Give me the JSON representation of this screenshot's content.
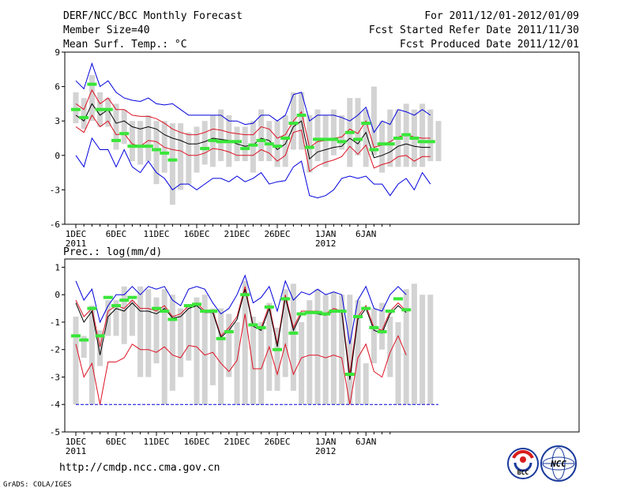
{
  "header": {
    "title": "DERF/NCC/BCC Monthly Forecast",
    "member_size": "Member Size=40",
    "for_range": "For 2011/12/01-2012/01/09",
    "started_date": "Fcst Started Refer Date 2011/11/30",
    "produced_date": "Fcst Produced Date 2011/12/01"
  },
  "footer": {
    "url": "http://cmdp.ncc.cma.gov.cn",
    "grads_credit": "GrADS: COLA/IGES",
    "logo_bcc_text": "BCC",
    "logo_ncc_text": "NCC"
  },
  "colors": {
    "box": "#d3d3d3",
    "median": "#39e639",
    "mean": "#000000",
    "sd": "#dd1122",
    "range": "#0000dd",
    "axis": "#000000"
  },
  "chart_data": [
    {
      "type": "line",
      "title": "Mean Surf. Temp.: °C",
      "ylim": [
        -6,
        9
      ],
      "yticks": [
        "9",
        "6",
        "3",
        "0",
        "-3",
        "-6"
      ],
      "xticks": [
        {
          "day": 1,
          "label": "1DEC",
          "sub": "2011"
        },
        {
          "day": 6,
          "label": "6DEC",
          "sub": ""
        },
        {
          "day": 11,
          "label": "11DEC",
          "sub": ""
        },
        {
          "day": 16,
          "label": "16DEC",
          "sub": ""
        },
        {
          "day": 21,
          "label": "21DEC",
          "sub": ""
        },
        {
          "day": 26,
          "label": "26DEC",
          "sub": ""
        },
        {
          "day": 32,
          "label": "1JAN",
          "sub": "2012"
        },
        {
          "day": 37,
          "label": "6JAN",
          "sub": ""
        }
      ],
      "boxes": [
        [
          2.8,
          5.5
        ],
        [
          2.3,
          5.0
        ],
        [
          3.0,
          7.0
        ],
        [
          2.5,
          5.5
        ],
        [
          2.5,
          5.0
        ],
        [
          0.5,
          4.5
        ],
        [
          1.0,
          4.0
        ],
        [
          -0.5,
          3.0
        ],
        [
          -0.8,
          3.0
        ],
        [
          -0.5,
          3.5
        ],
        [
          -2.5,
          3.0
        ],
        [
          -1.5,
          3.0
        ],
        [
          -4.3,
          2.8
        ],
        [
          -3.0,
          2.8
        ],
        [
          -2.5,
          2.0
        ],
        [
          -1.5,
          2.5
        ],
        [
          -0.8,
          3.0
        ],
        [
          -1.0,
          3.5
        ],
        [
          -0.5,
          4.0
        ],
        [
          -1.0,
          3.5
        ],
        [
          -0.5,
          2.5
        ],
        [
          -0.5,
          2.5
        ],
        [
          -1.5,
          3.0
        ],
        [
          -0.5,
          4.0
        ],
        [
          -0.5,
          3.0
        ],
        [
          -1.0,
          3.0
        ],
        [
          -1.0,
          3.5
        ],
        [
          0.5,
          5.5
        ],
        [
          0.5,
          5.5
        ],
        [
          -1.5,
          3.5
        ],
        [
          -0.5,
          4.0
        ],
        [
          -1.0,
          3.5
        ],
        [
          0.0,
          4.0
        ],
        [
          0.5,
          3.5
        ],
        [
          -1.0,
          5.0
        ],
        [
          0.0,
          5.0
        ],
        [
          -1.0,
          4.0
        ],
        [
          0.0,
          6.0
        ],
        [
          -1.5,
          3.0
        ],
        [
          -1.0,
          4.0
        ],
        [
          -1.0,
          4.0
        ],
        [
          -1.0,
          4.5
        ],
        [
          -1.0,
          4.0
        ],
        [
          -1.0,
          4.5
        ],
        [
          -0.5,
          4.0
        ],
        [
          -0.5,
          3.0
        ]
      ],
      "median": [
        4.0,
        3.3,
        6.2,
        4.0,
        4.0,
        1.3,
        1.9,
        0.8,
        0.8,
        0.8,
        0.5,
        0.2,
        -0.4,
        null,
        null,
        null,
        0.6,
        1.3,
        1.2,
        1.2,
        1.2,
        0.6,
        0.9,
        1.3,
        1.0,
        0.8,
        1.5,
        2.8,
        3.5,
        0.7,
        1.4,
        1.4,
        1.4,
        1.2,
        2.0,
        1.4,
        2.8,
        0.5,
        1.0,
        1.0,
        1.5,
        1.8,
        1.5,
        1.2,
        1.2,
        null
      ],
      "mean": [
        3.5,
        3.0,
        4.5,
        3.5,
        4.0,
        2.8,
        3.0,
        2.5,
        2.3,
        2.5,
        2.3,
        1.8,
        1.5,
        1.3,
        1.0,
        1.0,
        1.2,
        1.5,
        1.4,
        1.3,
        1.0,
        0.8,
        0.9,
        1.5,
        1.3,
        0.5,
        1.0,
        2.5,
        3.0,
        -0.3,
        0.3,
        0.5,
        0.7,
        0.8,
        1.5,
        1.0,
        2.0,
        -0.2,
        0.0,
        0.3,
        0.8,
        1.0,
        0.8,
        0.7,
        0.7,
        null
      ],
      "sd_upper": [
        4.5,
        4.0,
        5.7,
        4.5,
        5.0,
        4.0,
        4.0,
        3.5,
        3.4,
        3.4,
        3.2,
        2.8,
        2.3,
        2.0,
        1.8,
        1.8,
        2.0,
        2.3,
        2.2,
        2.0,
        1.9,
        1.8,
        1.8,
        2.5,
        2.3,
        1.5,
        1.8,
        3.0,
        3.8,
        0.7,
        1.2,
        1.3,
        1.5,
        1.6,
        2.3,
        1.9,
        3.0,
        0.7,
        0.9,
        1.2,
        1.6,
        1.8,
        1.6,
        1.5,
        1.5,
        null
      ],
      "sd_lower": [
        2.5,
        2.0,
        3.5,
        2.5,
        3.0,
        1.8,
        1.9,
        1.0,
        0.8,
        1.3,
        1.2,
        0.7,
        0.5,
        0.4,
        0.0,
        0.0,
        0.2,
        0.6,
        0.5,
        0.3,
        0.0,
        0.0,
        0.0,
        0.5,
        0.2,
        -0.5,
        0.0,
        2.0,
        2.2,
        -1.4,
        -0.9,
        -0.6,
        -0.4,
        -0.1,
        0.8,
        0.1,
        0.9,
        -1.1,
        -0.8,
        -0.6,
        -0.1,
        0.0,
        -0.5,
        -0.1,
        -0.1,
        null
      ],
      "range_max": [
        6.5,
        5.8,
        8.0,
        6.0,
        6.5,
        5.5,
        5.0,
        4.8,
        4.7,
        5.0,
        4.5,
        4.4,
        4.5,
        4.0,
        3.5,
        3.5,
        3.5,
        3.5,
        3.5,
        3.0,
        3.0,
        2.7,
        2.8,
        3.5,
        3.5,
        3.0,
        3.5,
        5.3,
        5.5,
        3.0,
        3.5,
        3.5,
        3.5,
        3.3,
        3.0,
        3.5,
        4.2,
        2.0,
        3.0,
        2.7,
        4.0,
        3.8,
        3.5,
        4.0,
        3.5,
        null
      ],
      "range_min": [
        0.0,
        -1.0,
        1.5,
        0.5,
        0.5,
        -1.0,
        0.5,
        -1.0,
        -1.5,
        -0.5,
        -1.5,
        -2.0,
        -3.0,
        -2.5,
        -2.5,
        -3.0,
        -2.5,
        -2.0,
        -2.0,
        -2.3,
        -1.8,
        -2.3,
        -2.0,
        -1.5,
        -2.5,
        -2.3,
        -2.2,
        -1.0,
        -0.5,
        -3.5,
        -3.7,
        -3.5,
        -3.0,
        -2.0,
        -1.8,
        -2.0,
        -1.8,
        -2.5,
        -2.5,
        -3.5,
        -2.5,
        -2.0,
        -3.0,
        -1.5,
        -2.5,
        null
      ]
    },
    {
      "type": "line",
      "title": "Prec.: log(mm/d)",
      "ylim": [
        -5,
        1.3
      ],
      "yticks": [
        "1",
        "0",
        "-1",
        "-2",
        "-3",
        "-4",
        "-5"
      ],
      "xticks": [
        {
          "day": 1,
          "label": "1DEC",
          "sub": "2011"
        },
        {
          "day": 6,
          "label": "6DEC",
          "sub": ""
        },
        {
          "day": 11,
          "label": "11DEC",
          "sub": ""
        },
        {
          "day": 16,
          "label": "16DEC",
          "sub": ""
        },
        {
          "day": 21,
          "label": "21DEC",
          "sub": ""
        },
        {
          "day": 26,
          "label": "26DEC",
          "sub": ""
        },
        {
          "day": 32,
          "label": "1JAN",
          "sub": "2012"
        },
        {
          "day": 37,
          "label": "6JAN",
          "sub": ""
        }
      ],
      "floor": -4,
      "boxes": [
        [
          -4,
          -0.8
        ],
        [
          -2.3,
          -1.5
        ],
        [
          -4,
          -0.4
        ],
        [
          -2.6,
          -1.3
        ],
        [
          -1.5,
          -0.2
        ],
        [
          -1.5,
          -0.2
        ],
        [
          -1.8,
          0.3
        ],
        [
          -1.5,
          -0.2
        ],
        [
          -3,
          0.3
        ],
        [
          -3,
          0.2
        ],
        [
          -2.5,
          -0.1
        ],
        [
          -4,
          0.2
        ],
        [
          -3.5,
          0
        ],
        [
          -3,
          -0.5
        ],
        [
          -2.4,
          -0.4
        ],
        [
          -4,
          -0.1
        ],
        [
          -4,
          0
        ],
        [
          -3.3,
          -0.5
        ],
        [
          -4,
          -0.5
        ],
        [
          -3,
          -0.7
        ],
        [
          -4,
          -1
        ],
        [
          -4,
          0.5
        ],
        [
          -4,
          -0.8
        ],
        [
          -4,
          -1
        ],
        [
          -3.5,
          -0.3
        ],
        [
          -3.5,
          -1.2
        ],
        [
          -3,
          0.2
        ],
        [
          -3.5,
          0.4
        ],
        [
          -4,
          -1
        ],
        [
          -4,
          -0.2
        ],
        [
          -4,
          0.2
        ],
        [
          -4,
          0
        ],
        [
          -4,
          0.1
        ],
        [
          -4,
          0
        ],
        [
          -4,
          0
        ],
        [
          -4,
          -0.2
        ],
        [
          -4,
          -2.5
        ],
        [
          -2.5,
          -0.5
        ],
        [
          -2,
          -0.3
        ],
        [
          -3,
          -0.8
        ],
        [
          -4,
          -1
        ],
        [
          -4,
          0.2
        ],
        [
          -4,
          0.4
        ],
        [
          -4,
          0
        ],
        [
          -4,
          0
        ],
        [
          null,
          null
        ]
      ],
      "median": [
        -1.5,
        -1.65,
        -0.5,
        -1.5,
        -0.1,
        -0.4,
        -0.2,
        -0.1,
        null,
        null,
        -0.5,
        -0.6,
        -0.9,
        null,
        -0.4,
        -0.35,
        -0.6,
        -0.6,
        -1.6,
        -1.35,
        null,
        0.0,
        -1.1,
        -1.2,
        -0.45,
        -2.0,
        -0.15,
        -1.4,
        -0.7,
        -0.65,
        -0.65,
        -0.7,
        -0.6,
        -0.6,
        -2.9,
        -0.8,
        -0.5,
        -1.2,
        -1.35,
        -0.6,
        -0.15,
        -0.55,
        null,
        null,
        null,
        null
      ],
      "mean": [
        -0.3,
        -1.0,
        -0.6,
        -2.2,
        -0.8,
        -0.5,
        -0.6,
        -0.3,
        -0.6,
        -0.6,
        -0.7,
        -0.5,
        -0.85,
        -0.8,
        -0.5,
        -0.4,
        -0.65,
        -0.65,
        -1.55,
        -1.3,
        -0.9,
        0.2,
        -1.15,
        -1.3,
        -0.5,
        -1.9,
        -0.1,
        -1.3,
        -0.7,
        -0.65,
        -0.7,
        -0.75,
        -0.6,
        -0.65,
        -3.1,
        -0.9,
        -0.5,
        -1.3,
        -1.4,
        -0.7,
        -0.4,
        -0.65,
        null,
        null,
        null,
        null
      ],
      "sd_upper": [
        -0.2,
        -0.8,
        -0.5,
        -1.9,
        -0.6,
        -0.4,
        -0.5,
        -0.2,
        -0.5,
        -0.5,
        -0.6,
        -0.4,
        -0.8,
        -0.7,
        -0.4,
        -0.3,
        -0.6,
        -0.6,
        -1.5,
        -1.2,
        -0.8,
        0.3,
        -1.1,
        -1.2,
        -0.4,
        -1.8,
        0,
        -1.2,
        -0.6,
        -0.6,
        -0.6,
        -0.7,
        -0.5,
        -0.6,
        -2.9,
        -0.8,
        -0.4,
        -1.2,
        -1.3,
        -0.6,
        -0.3,
        -0.6,
        null,
        null,
        null,
        null
      ],
      "sd_lower": [
        -1.8,
        -3.0,
        -2.5,
        -4.0,
        -2.45,
        -2.45,
        -2.3,
        -1.8,
        -2.0,
        -2.0,
        -2.1,
        -1.9,
        -2.2,
        -2.3,
        -1.85,
        -1.9,
        -2.2,
        -2.1,
        -2.5,
        -2.8,
        -2.4,
        -0.7,
        -2.7,
        -2.7,
        -1.9,
        -2.9,
        -1.8,
        -2.9,
        -2.3,
        -2.2,
        -2.2,
        -2.3,
        -2.2,
        -2.3,
        -4.0,
        -2.3,
        -1.8,
        -2.8,
        -3.0,
        -2.1,
        -1.5,
        -2.2,
        null,
        null,
        null,
        null
      ],
      "range_max": [
        0.5,
        -0.2,
        0.2,
        -1.0,
        -0.4,
        0.0,
        0.0,
        0.3,
        0.0,
        0.3,
        0.2,
        0.3,
        -0.2,
        -0.4,
        0.2,
        0.3,
        0.2,
        -0.3,
        -0.7,
        -0.5,
        0.0,
        0.7,
        -0.3,
        -0.1,
        0.3,
        -0.6,
        0.5,
        -0.2,
        0.1,
        0.0,
        0.2,
        0.0,
        0.1,
        0.0,
        -1.8,
        -0.2,
        0.3,
        -0.5,
        -0.6,
        0.0,
        0.3,
        0.0,
        null,
        null,
        null,
        null
      ],
      "range_min": [
        -4,
        -4,
        -4,
        -4,
        -4,
        -4,
        -4,
        -4,
        -4,
        -4,
        -4,
        -4,
        -4,
        -4,
        -4,
        -4,
        -4,
        -4,
        -4,
        -4,
        -4,
        -4,
        -4,
        -4,
        -4,
        -4,
        -4,
        -4,
        -4,
        -4,
        -4,
        -4,
        -4,
        -4,
        -4,
        -4,
        -4,
        -4,
        -4,
        -4,
        -4,
        -4,
        -4,
        -4,
        -4,
        -4
      ]
    }
  ]
}
